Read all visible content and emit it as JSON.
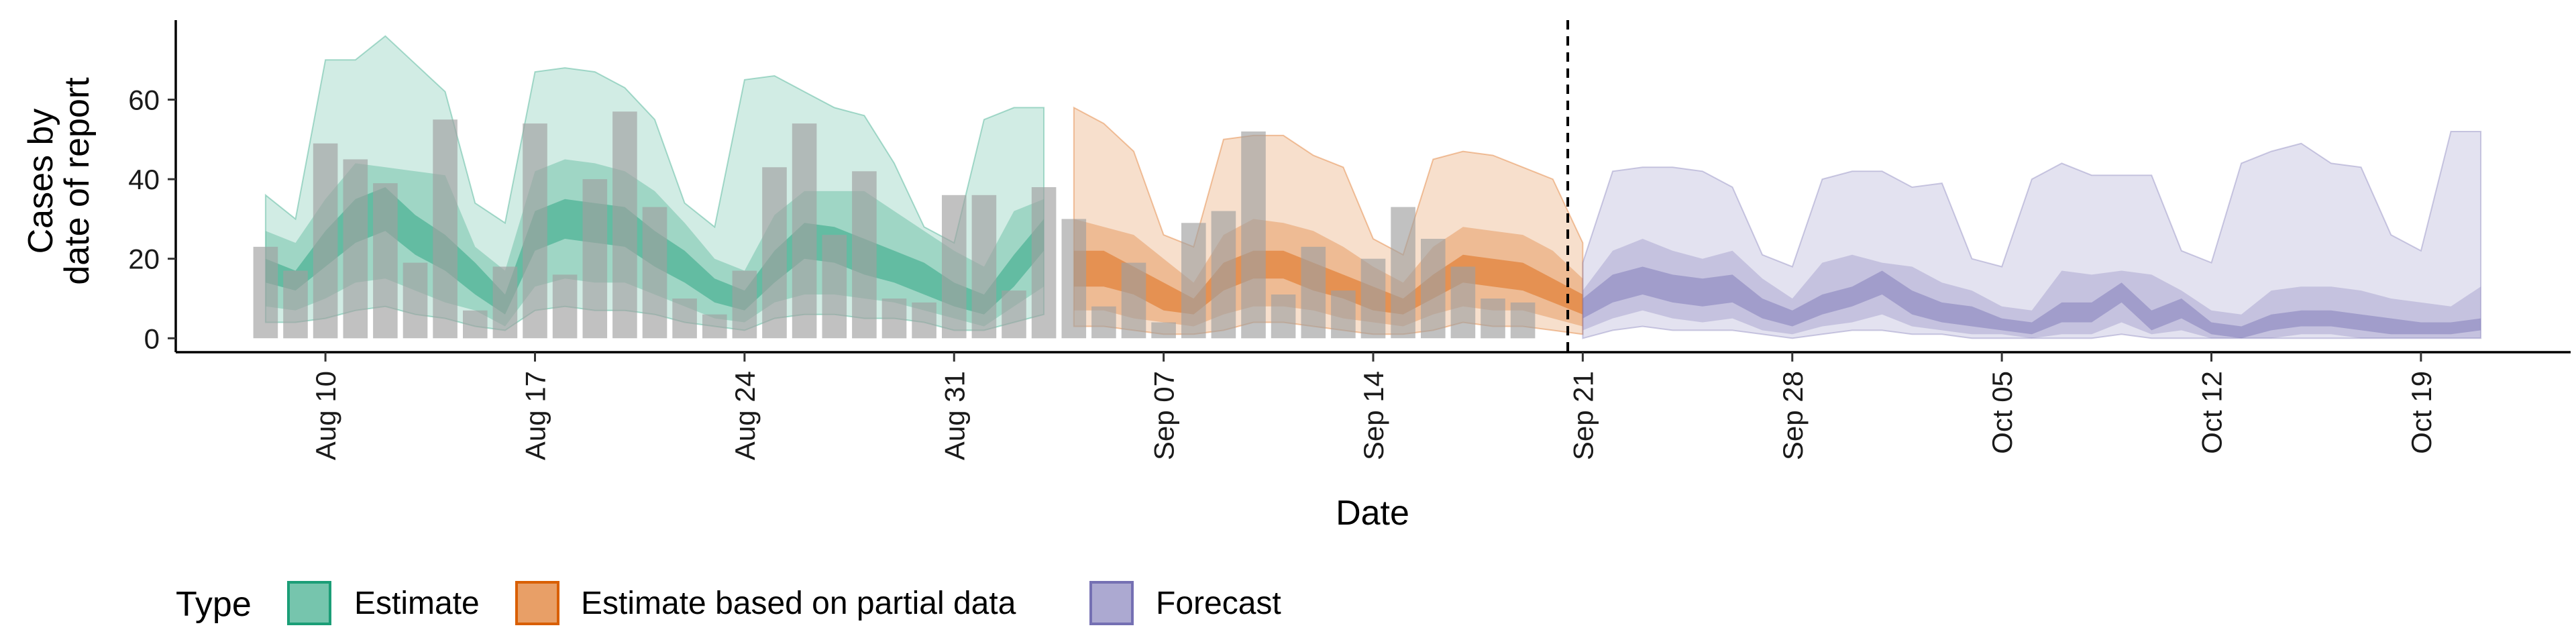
{
  "chart_data": {
    "type": "area",
    "xlabel": "Date",
    "ylabel": [
      "Cases by",
      "date of report"
    ],
    "ylim": [
      -3.5,
      80
    ],
    "y_ticks": [
      0,
      20,
      40,
      60
    ],
    "x_range": [
      "2020-08-05",
      "2020-10-24"
    ],
    "x_ticks": [
      {
        "date": "2020-08-10",
        "label": "Aug 10"
      },
      {
        "date": "2020-08-17",
        "label": "Aug 17"
      },
      {
        "date": "2020-08-24",
        "label": "Aug 24"
      },
      {
        "date": "2020-08-31",
        "label": "Aug 31"
      },
      {
        "date": "2020-09-07",
        "label": "Sep 07"
      },
      {
        "date": "2020-09-14",
        "label": "Sep 14"
      },
      {
        "date": "2020-09-21",
        "label": "Sep 21"
      },
      {
        "date": "2020-09-28",
        "label": "Sep 28"
      },
      {
        "date": "2020-10-05",
        "label": "Oct 05"
      },
      {
        "date": "2020-10-12",
        "label": "Oct 12"
      },
      {
        "date": "2020-10-19",
        "label": "Oct 19"
      }
    ],
    "forecast_date": "2020-09-20",
    "grid": false,
    "legend": {
      "title": "Type",
      "placement": "bottom",
      "entries": [
        {
          "key": "estimate",
          "label": "Estimate"
        },
        {
          "key": "partial",
          "label": "Estimate based on partial data"
        },
        {
          "key": "forecast",
          "label": "Forecast"
        }
      ]
    },
    "colors": {
      "estimate": "#1b9e77",
      "partial": "#d95f02",
      "forecast": "#7570b3",
      "bars": "#a0a0a0",
      "vline": "#000000"
    },
    "reported_cases": {
      "start": "2020-08-08",
      "values": [
        23,
        17,
        49,
        45,
        39,
        19,
        55,
        7,
        18,
        54,
        16,
        40,
        57,
        33,
        10,
        6,
        17,
        43,
        54,
        26,
        42,
        10,
        9,
        36,
        36,
        12,
        38,
        30,
        8,
        19,
        4,
        29,
        32,
        52,
        11,
        23,
        12,
        20,
        33,
        25,
        18,
        10,
        9
      ]
    },
    "series": [
      {
        "key": "estimate",
        "start": "2020-08-08",
        "median": [
          17,
          14,
          22,
          29,
          32,
          26,
          21,
          15,
          8,
          27,
          30,
          29,
          28,
          22,
          18,
          12,
          9,
          18,
          24,
          23,
          20,
          18,
          15,
          11,
          8,
          17,
          26
        ],
        "lower50": [
          14,
          12,
          18,
          24,
          27,
          21,
          17,
          11,
          6,
          22,
          25,
          24,
          23,
          18,
          14,
          9,
          7,
          14,
          20,
          19,
          16,
          14,
          11,
          8,
          6,
          13,
          22
        ],
        "upper50": [
          20,
          17,
          27,
          35,
          38,
          31,
          26,
          19,
          11,
          32,
          35,
          34,
          33,
          27,
          22,
          15,
          12,
          22,
          29,
          28,
          25,
          22,
          19,
          14,
          11,
          21,
          30
        ],
        "lower90": [
          8,
          7,
          10,
          14,
          15,
          12,
          9,
          7,
          3,
          13,
          15,
          14,
          14,
          11,
          8,
          5,
          4,
          9,
          11,
          11,
          10,
          9,
          7,
          5,
          3,
          8,
          13
        ],
        "upper90": [
          27,
          24,
          35,
          44,
          43,
          42,
          41,
          23,
          17,
          42,
          45,
          44,
          42,
          37,
          29,
          20,
          17,
          31,
          37,
          37,
          37,
          32,
          27,
          22,
          18,
          32,
          35
        ],
        "lower_outer": [
          4,
          4,
          5,
          7,
          8,
          6,
          5,
          3,
          2,
          7,
          8,
          7,
          7,
          6,
          4,
          3,
          2,
          5,
          6,
          6,
          5,
          5,
          4,
          2,
          2,
          4,
          6
        ],
        "upper_outer": [
          36,
          30,
          70,
          70,
          76,
          69,
          62,
          34,
          29,
          67,
          68,
          67,
          63,
          55,
          34,
          28,
          65,
          66,
          62,
          58,
          56,
          44,
          28,
          24,
          55,
          58,
          58
        ]
      },
      {
        "key": "partial",
        "start": "2020-09-04",
        "median": [
          17,
          17,
          14,
          10,
          8,
          15,
          18,
          18,
          15,
          13,
          10,
          8,
          13,
          17,
          16,
          15,
          12,
          8
        ],
        "lower50": [
          13,
          13,
          11,
          7,
          6,
          12,
          15,
          15,
          12,
          10,
          7,
          6,
          10,
          14,
          13,
          12,
          9,
          6
        ],
        "upper50": [
          22,
          22,
          18,
          14,
          10,
          19,
          22,
          22,
          19,
          16,
          13,
          10,
          16,
          21,
          20,
          19,
          15,
          11
        ],
        "lower90": [
          7,
          7,
          5,
          4,
          3,
          6,
          8,
          8,
          7,
          5,
          4,
          3,
          6,
          8,
          7,
          7,
          5,
          3
        ],
        "upper90": [
          30,
          28,
          26,
          20,
          14,
          26,
          30,
          29,
          27,
          23,
          18,
          14,
          23,
          28,
          27,
          26,
          22,
          15
        ],
        "lower_outer": [
          3,
          3,
          2,
          1,
          1,
          2,
          4,
          4,
          3,
          2,
          1,
          1,
          2,
          4,
          3,
          3,
          2,
          1
        ],
        "upper_outer": [
          58,
          54,
          47,
          26,
          23,
          50,
          51,
          51,
          46,
          43,
          25,
          21,
          45,
          47,
          46,
          43,
          40,
          24
        ]
      },
      {
        "key": "forecast",
        "start": "2020-09-21",
        "median": [
          7,
          12,
          14,
          12,
          11,
          12,
          7,
          5,
          8,
          10,
          14,
          9,
          6,
          5,
          3,
          2,
          6,
          6,
          11,
          4,
          7,
          2,
          1,
          3,
          4,
          4,
          3,
          2,
          2,
          2,
          3
        ],
        "lower50": [
          5,
          9,
          11,
          9,
          8,
          9,
          5,
          3,
          6,
          8,
          11,
          6,
          4,
          3,
          2,
          1,
          4,
          4,
          9,
          2,
          5,
          1,
          0,
          2,
          3,
          3,
          2,
          1,
          1,
          1,
          2
        ],
        "upper50": [
          10,
          16,
          18,
          16,
          15,
          16,
          10,
          7,
          11,
          13,
          17,
          12,
          9,
          8,
          5,
          4,
          9,
          9,
          14,
          7,
          10,
          4,
          3,
          6,
          7,
          7,
          6,
          5,
          4,
          4,
          5
        ],
        "lower90": [
          2,
          5,
          7,
          5,
          4,
          5,
          2,
          1,
          3,
          4,
          6,
          3,
          2,
          1,
          1,
          0,
          1,
          1,
          4,
          1,
          2,
          0,
          0,
          0,
          1,
          1,
          0,
          0,
          0,
          0,
          0
        ],
        "upper90": [
          12,
          22,
          25,
          22,
          20,
          22,
          15,
          10,
          19,
          21,
          19,
          18,
          14,
          12,
          8,
          7,
          17,
          16,
          17,
          16,
          12,
          7,
          6,
          12,
          13,
          13,
          12,
          10,
          9,
          8,
          13
        ],
        "lower_outer": [
          0,
          2,
          3,
          2,
          2,
          2,
          1,
          0,
          1,
          2,
          2,
          1,
          1,
          0,
          0,
          0,
          0,
          0,
          1,
          0,
          0,
          0,
          0,
          0,
          0,
          0,
          0,
          0,
          0,
          0,
          0
        ],
        "upper_outer": [
          19,
          42,
          43,
          43,
          42,
          38,
          21,
          18,
          40,
          42,
          42,
          38,
          39,
          20,
          18,
          40,
          44,
          41,
          41,
          41,
          22,
          19,
          44,
          47,
          49,
          44,
          43,
          26,
          22,
          52,
          52
        ]
      }
    ]
  }
}
